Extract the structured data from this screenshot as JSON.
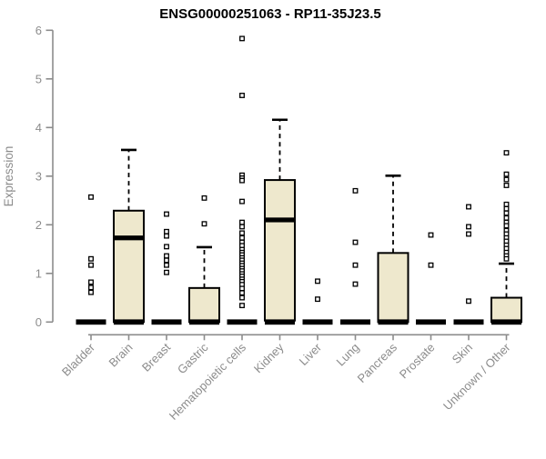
{
  "chart_data": {
    "type": "boxplot",
    "title": "ENSG00000251063 - RP11-35J23.5",
    "ylabel": "Expression",
    "xlabel": "",
    "ylim": [
      0,
      6
    ],
    "yticks": [
      0,
      1,
      2,
      3,
      4,
      5,
      6
    ],
    "grid": "off",
    "legend": "none",
    "categories": [
      "Bladder",
      "Brain",
      "Breast",
      "Gastric",
      "Hematopoietic cells",
      "Kidney",
      "Liver",
      "Lung",
      "Pancreas",
      "Prostate",
      "Skin",
      "Unknown / Other"
    ],
    "boxes": [
      {
        "category": "Bladder",
        "median": 0,
        "q1": 0,
        "q3": 0,
        "whisker_low": 0,
        "whisker_high": 0,
        "outliers": [
          2.57,
          1.3,
          1.17,
          0.82,
          0.71,
          0.61
        ]
      },
      {
        "category": "Brain",
        "median": 1.73,
        "q1": 0,
        "q3": 2.29,
        "whisker_low": 0,
        "whisker_high": 3.54,
        "outliers": []
      },
      {
        "category": "Breast",
        "median": 0,
        "q1": 0,
        "q3": 0,
        "whisker_low": 0,
        "whisker_high": 0,
        "outliers": [
          2.22,
          1.86,
          1.77,
          1.55,
          1.36,
          1.27,
          1.17,
          1.02
        ]
      },
      {
        "category": "Gastric",
        "median": 0,
        "q1": 0,
        "q3": 0.7,
        "whisker_low": 0,
        "whisker_high": 1.54,
        "outliers": [
          2.55,
          2.02
        ]
      },
      {
        "category": "Hematopoietic cells",
        "median": 0,
        "q1": 0,
        "q3": 0,
        "whisker_low": 0,
        "whisker_high": 0,
        "outliers": [
          5.83,
          4.66,
          3.02,
          2.96,
          2.91,
          2.48,
          2.05,
          1.96,
          1.83,
          1.73,
          1.64,
          1.57,
          1.49,
          1.43,
          1.38,
          1.32,
          1.27,
          1.21,
          1.16,
          1.1,
          1.05,
          0.99,
          0.94,
          0.88,
          0.83,
          0.77,
          0.69,
          0.6,
          0.5,
          0.34
        ]
      },
      {
        "category": "Kidney",
        "median": 2.1,
        "q1": 0.03,
        "q3": 2.92,
        "whisker_low": 0,
        "whisker_high": 4.16,
        "outliers": []
      },
      {
        "category": "Liver",
        "median": 0,
        "q1": 0,
        "q3": 0,
        "whisker_low": 0,
        "whisker_high": 0,
        "outliers": [
          0.84,
          0.47
        ]
      },
      {
        "category": "Lung",
        "median": 0,
        "q1": 0,
        "q3": 0,
        "whisker_low": 0,
        "whisker_high": 0,
        "outliers": [
          2.7,
          1.64,
          1.17,
          0.78
        ]
      },
      {
        "category": "Pancreas",
        "median": 0,
        "q1": 0,
        "q3": 1.42,
        "whisker_low": 0,
        "whisker_high": 3.01,
        "outliers": []
      },
      {
        "category": "Prostate",
        "median": 0,
        "q1": 0,
        "q3": 0,
        "whisker_low": 0,
        "whisker_high": 0,
        "outliers": [
          1.79,
          1.17
        ]
      },
      {
        "category": "Skin",
        "median": 0,
        "q1": 0,
        "q3": 0,
        "whisker_low": 0,
        "whisker_high": 0,
        "outliers": [
          2.37,
          1.96,
          1.81,
          0.43
        ]
      },
      {
        "category": "Unknown / Other",
        "median": 0,
        "q1": 0,
        "q3": 0.5,
        "whisker_low": 0,
        "whisker_high": 1.2,
        "outliers": [
          3.48,
          3.04,
          2.93,
          2.81,
          2.42,
          2.33,
          2.24,
          2.14,
          2.05,
          1.98,
          1.88,
          1.81,
          1.73,
          1.66,
          1.58,
          1.51,
          1.43,
          1.36,
          1.3
        ]
      }
    ],
    "colors": {
      "box_fill": "#EEE8CD",
      "box_stroke": "#000000",
      "median": "#000000",
      "whisker": "#000000",
      "outlier_fill": "#FFFFFF",
      "outlier_stroke": "#000000",
      "axis": "#8C8C8C",
      "tick_label": "#8C8C8C",
      "title": "#000000",
      "background": "#FFFFFF"
    }
  }
}
